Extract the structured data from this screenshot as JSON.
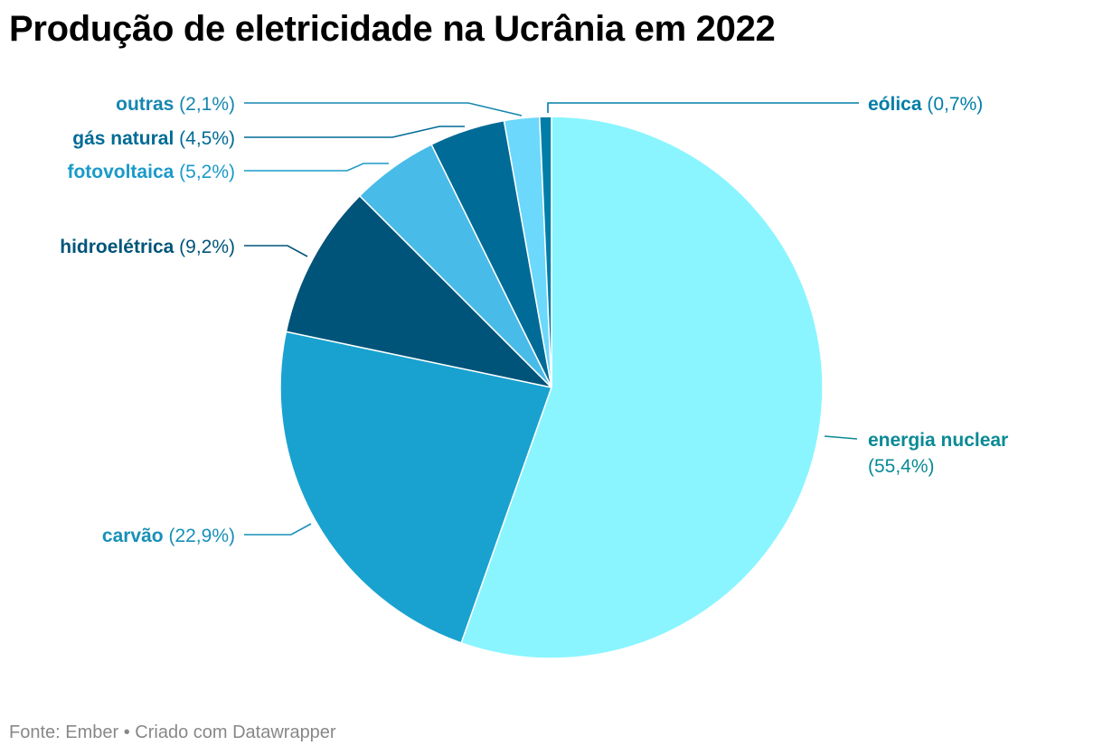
{
  "chart_data": {
    "type": "pie",
    "title": "Produção de eletricidade na Ucrânia em 2022",
    "slices": [
      {
        "name": "energia nuclear",
        "value": 55.4,
        "value_label": "(55,4%)",
        "color": "#8af5ff",
        "text_color": "#0a8a96"
      },
      {
        "name": "carvão",
        "value": 22.9,
        "value_label": "(22,9%)",
        "color": "#19a2cf",
        "text_color": "#1790b8"
      },
      {
        "name": "hidroelétrica",
        "value": 9.2,
        "value_label": "(9,2%)",
        "color": "#005479",
        "text_color": "#005479"
      },
      {
        "name": "fotovoltaica",
        "value": 5.2,
        "value_label": "(5,2%)",
        "color": "#48bbe8",
        "text_color": "#1a9ac9"
      },
      {
        "name": "gás natural",
        "value": 4.5,
        "value_label": "(4,5%)",
        "color": "#006b96",
        "text_color": "#006b96"
      },
      {
        "name": "outras",
        "value": 2.1,
        "value_label": "(2,1%)",
        "color": "#6cd8fb",
        "text_color": "#1686b0"
      },
      {
        "name": "eólica",
        "value": 0.7,
        "value_label": "(0,7%)",
        "color": "#007ea8",
        "text_color": "#007ea8"
      }
    ]
  },
  "footer": "Fonte: Ember • Criado com Datawrapper"
}
